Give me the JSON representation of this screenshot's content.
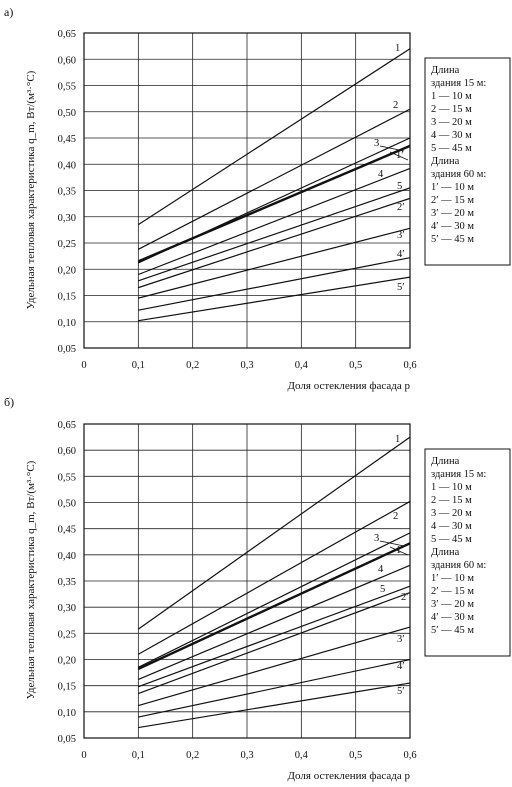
{
  "chart_data": [
    {
      "type": "line",
      "panel_label": "а)",
      "xlabel": "Доля остекления фасада p",
      "ylabel": "Удельная тепловая характеристика q_m, Вт/(м³·°С)",
      "xlim": [
        0,
        0.6
      ],
      "ylim": [
        0.05,
        0.65
      ],
      "x_ticks": [
        "0",
        "0,1",
        "0,2",
        "0,3",
        "0,4",
        "0,5",
        "0,6"
      ],
      "y_ticks": [
        "0,05",
        "0,10",
        "0,15",
        "0,20",
        "0,25",
        "0,30",
        "0,35",
        "0,40",
        "0,45",
        "0,50",
        "0,55",
        "0,60",
        "0,65"
      ],
      "grid": true,
      "legend": {
        "placement": "right",
        "group1_title": [
          "Длина",
          "здания 15 м:"
        ],
        "group1_items": [
          "1 — 10 м",
          "2 — 15 м",
          "3 — 20 м",
          "4 — 30 м",
          "5 — 45 м"
        ],
        "group2_title": [
          "Длина",
          "здания 60 м:"
        ],
        "group2_items": [
          "1′ — 10 м",
          "2′ — 15 м",
          "3′ — 20 м",
          "4′ — 30 м",
          "5′ — 45 м"
        ]
      },
      "series": [
        {
          "name": "1",
          "x": [
            0.1,
            0.6
          ],
          "y": [
            0.285,
            0.62
          ],
          "bold": false
        },
        {
          "name": "2",
          "x": [
            0.1,
            0.6
          ],
          "y": [
            0.238,
            0.505
          ],
          "bold": false
        },
        {
          "name": "3",
          "x": [
            0.1,
            0.6
          ],
          "y": [
            0.212,
            0.45
          ],
          "bold": false
        },
        {
          "name": "1′",
          "x": [
            0.1,
            0.6
          ],
          "y": [
            0.215,
            0.435
          ],
          "bold": true
        },
        {
          "name": "4",
          "x": [
            0.1,
            0.6
          ],
          "y": [
            0.19,
            0.392
          ],
          "bold": false
        },
        {
          "name": "5",
          "x": [
            0.1,
            0.6
          ],
          "y": [
            0.178,
            0.355
          ],
          "bold": false
        },
        {
          "name": "2′",
          "x": [
            0.1,
            0.6
          ],
          "y": [
            0.165,
            0.335
          ],
          "bold": false
        },
        {
          "name": "3′",
          "x": [
            0.1,
            0.6
          ],
          "y": [
            0.145,
            0.278
          ],
          "bold": false
        },
        {
          "name": "4′",
          "x": [
            0.1,
            0.6
          ],
          "y": [
            0.122,
            0.222
          ],
          "bold": false
        },
        {
          "name": "5′",
          "x": [
            0.1,
            0.6
          ],
          "y": [
            0.102,
            0.185
          ],
          "bold": false
        }
      ]
    },
    {
      "type": "line",
      "panel_label": "б)",
      "xlabel": "Доля остекления фасада p",
      "ylabel": "Удельная тепловая характеристика q_m, Вт/(м³·°С)",
      "xlim": [
        0,
        0.6
      ],
      "ylim": [
        0.05,
        0.65
      ],
      "x_ticks": [
        "0",
        "0,1",
        "0,2",
        "0,3",
        "0,4",
        "0,5",
        "0,6"
      ],
      "y_ticks": [
        "0,05",
        "0,10",
        "0,15",
        "0,20",
        "0,25",
        "0,30",
        "0,35",
        "0,40",
        "0,45",
        "0,50",
        "0,55",
        "0,60",
        "0,65"
      ],
      "grid": true,
      "legend": {
        "placement": "right",
        "group1_title": [
          "Длина",
          "здания 15 м:"
        ],
        "group1_items": [
          "1 — 10 м",
          "2 — 15 м",
          "3 — 20 м",
          "4 — 30 м",
          "5 — 45 м"
        ],
        "group2_title": [
          "Длина",
          "здания 60 м:"
        ],
        "group2_items": [
          "1′ — 10 м",
          "2′ — 15 м",
          "3′ — 20 м",
          "4′ — 30 м",
          "5′ — 45 м"
        ]
      },
      "series": [
        {
          "name": "1",
          "x": [
            0.1,
            0.6
          ],
          "y": [
            0.258,
            0.625
          ],
          "bold": false
        },
        {
          "name": "2",
          "x": [
            0.1,
            0.6
          ],
          "y": [
            0.21,
            0.502
          ],
          "bold": false
        },
        {
          "name": "3",
          "x": [
            0.1,
            0.6
          ],
          "y": [
            0.185,
            0.442
          ],
          "bold": false
        },
        {
          "name": "1′",
          "x": [
            0.1,
            0.6
          ],
          "y": [
            0.182,
            0.422
          ],
          "bold": true
        },
        {
          "name": "4",
          "x": [
            0.1,
            0.6
          ],
          "y": [
            0.162,
            0.38
          ],
          "bold": false
        },
        {
          "name": "5",
          "x": [
            0.1,
            0.6
          ],
          "y": [
            0.148,
            0.34
          ],
          "bold": false
        },
        {
          "name": "2′",
          "x": [
            0.1,
            0.6
          ],
          "y": [
            0.135,
            0.328
          ],
          "bold": false
        },
        {
          "name": "3′",
          "x": [
            0.1,
            0.6
          ],
          "y": [
            0.112,
            0.262
          ],
          "bold": false
        },
        {
          "name": "4′",
          "x": [
            0.1,
            0.6
          ],
          "y": [
            0.09,
            0.2
          ],
          "bold": false
        },
        {
          "name": "5′",
          "x": [
            0.1,
            0.6
          ],
          "y": [
            0.07,
            0.155
          ],
          "bold": false
        }
      ]
    }
  ]
}
